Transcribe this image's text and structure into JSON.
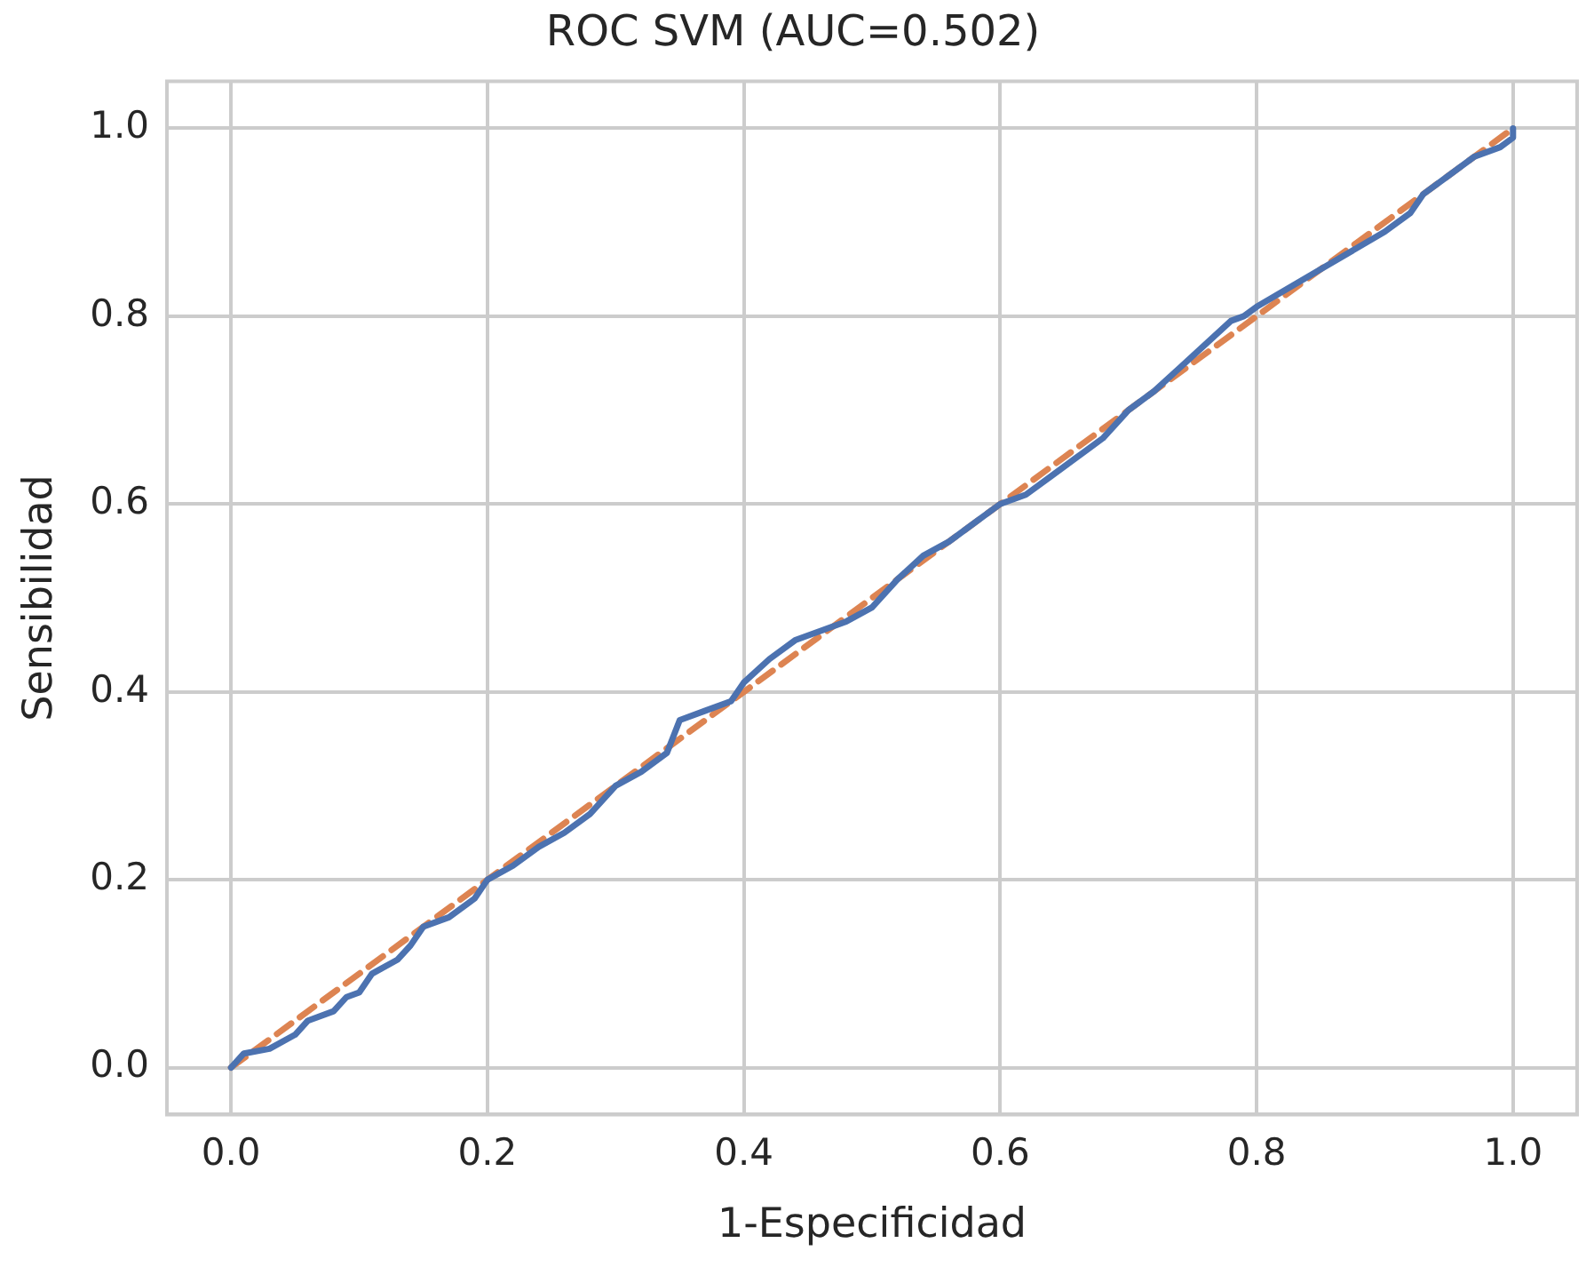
{
  "chart_data": {
    "type": "line",
    "title": "ROC SVM (AUC=0.502)",
    "xlabel": "1-Especificidad",
    "ylabel": "Sensibilidad",
    "xlim": [
      -0.05,
      1.05
    ],
    "ylim": [
      -0.05,
      1.05
    ],
    "xticks": [
      {
        "value": 0,
        "label": "0.0"
      },
      {
        "value": 0.2,
        "label": "0.2"
      },
      {
        "value": 0.4,
        "label": "0.4"
      },
      {
        "value": 0.6,
        "label": "0.6"
      },
      {
        "value": 0.8,
        "label": "0.8"
      },
      {
        "value": 1,
        "label": "1.0"
      }
    ],
    "yticks": [
      {
        "value": 0,
        "label": "0.0"
      },
      {
        "value": 0.2,
        "label": "0.2"
      },
      {
        "value": 0.4,
        "label": "0.4"
      },
      {
        "value": 0.6,
        "label": "0.6"
      },
      {
        "value": 0.8,
        "label": "0.8"
      },
      {
        "value": 1,
        "label": "1.0"
      }
    ],
    "grid": true,
    "legend": false,
    "marker": "none",
    "series": [
      {
        "color": "#4c72b0",
        "line_style": "solid",
        "x": [
          0,
          0.01,
          0.03,
          0.05,
          0.06,
          0.08,
          0.09,
          0.1,
          0.11,
          0.13,
          0.14,
          0.15,
          0.17,
          0.19,
          0.2,
          0.22,
          0.24,
          0.26,
          0.28,
          0.3,
          0.32,
          0.34,
          0.35,
          0.37,
          0.39,
          0.4,
          0.42,
          0.44,
          0.46,
          0.48,
          0.5,
          0.52,
          0.54,
          0.56,
          0.58,
          0.6,
          0.62,
          0.64,
          0.66,
          0.68,
          0.7,
          0.72,
          0.74,
          0.76,
          0.78,
          0.79,
          0.8,
          0.85,
          0.9,
          0.92,
          0.93,
          0.95,
          0.97,
          0.99,
          1,
          1
        ],
        "values": [
          0,
          0.015,
          0.02,
          0.035,
          0.05,
          0.06,
          0.075,
          0.08,
          0.1,
          0.115,
          0.13,
          0.15,
          0.16,
          0.18,
          0.2,
          0.215,
          0.235,
          0.25,
          0.27,
          0.3,
          0.315,
          0.335,
          0.37,
          0.38,
          0.39,
          0.41,
          0.435,
          0.455,
          0.465,
          0.475,
          0.49,
          0.52,
          0.545,
          0.56,
          0.58,
          0.6,
          0.61,
          0.63,
          0.65,
          0.67,
          0.7,
          0.72,
          0.745,
          0.77,
          0.795,
          0.8,
          0.81,
          0.85,
          0.89,
          0.91,
          0.93,
          0.95,
          0.97,
          0.98,
          0.99,
          1
        ]
      },
      {
        "color": "#dd8452",
        "line_style": "dashed",
        "x": [
          0,
          1
        ],
        "values": [
          0,
          1
        ]
      }
    ]
  }
}
